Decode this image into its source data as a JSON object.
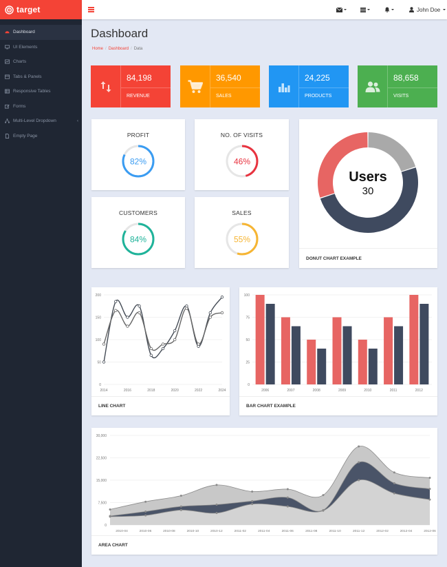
{
  "brand": {
    "name": "target"
  },
  "header": {
    "user_name": "John Doe"
  },
  "sidebar": {
    "items": [
      {
        "label": "Dashboard",
        "icon": "dashboard-icon",
        "active": true
      },
      {
        "label": "UI Elements",
        "icon": "desktop-icon"
      },
      {
        "label": "Charts",
        "icon": "chart-icon"
      },
      {
        "label": "Tabs & Panels",
        "icon": "tabs-icon"
      },
      {
        "label": "Responsive Tables",
        "icon": "table-icon"
      },
      {
        "label": "Forms",
        "icon": "edit-icon"
      },
      {
        "label": "Multi-Level Dropdown",
        "icon": "sitemap-icon",
        "has_children": true
      },
      {
        "label": "Empty Page",
        "icon": "file-icon"
      }
    ]
  },
  "page": {
    "title": "Dashboard",
    "breadcrumb": [
      "Home",
      "Dashboard",
      "Data"
    ]
  },
  "stats": [
    {
      "value": "84,198",
      "label": "REVENUE",
      "color": "#f44336",
      "icon": "sort-arrows-icon"
    },
    {
      "value": "36,540",
      "label": "SALES",
      "color": "#ff9800",
      "icon": "cart-icon"
    },
    {
      "value": "24,225",
      "label": "PRODUCTS",
      "color": "#2196f3",
      "icon": "bar-chart-icon"
    },
    {
      "value": "88,658",
      "label": "VISITS",
      "color": "#4caf50",
      "icon": "users-icon"
    }
  ],
  "gauges": [
    {
      "title": "PROFIT",
      "percent": 82,
      "label": "82%",
      "color": "#3a9cf2"
    },
    {
      "title": "NO. OF VISITS",
      "percent": 46,
      "label": "46%",
      "color": "#e8333f"
    },
    {
      "title": "CUSTOMERS",
      "percent": 84,
      "label": "84%",
      "color": "#1fb39a"
    },
    {
      "title": "SALES",
      "percent": 55,
      "label": "55%",
      "color": "#f6b533"
    }
  ],
  "chart_data": [
    {
      "type": "pie",
      "variant": "donut",
      "center_title": "Users",
      "center_value": "30",
      "footer": "DONUT CHART EXAMPLE",
      "values": [
        50,
        30,
        20
      ],
      "colors": [
        "#3f4a5f",
        "#e76563",
        "#a9a9a9"
      ]
    },
    {
      "type": "line",
      "footer": "LINE CHART",
      "x": [
        2014,
        2015,
        2016,
        2017,
        2018,
        2019,
        2020,
        2021,
        2022,
        2023,
        2024
      ],
      "x_ticks": [
        "2014",
        "2016",
        "2018",
        "2020",
        "2022",
        "2024"
      ],
      "y_ticks": [
        "0",
        "50",
        "100",
        "150",
        "200"
      ],
      "ylim": [
        0,
        200
      ],
      "series": [
        {
          "values": [
            50,
            185,
            150,
            175,
            65,
            80,
            120,
            175,
            85,
            160,
            195
          ],
          "color": "#444b55"
        },
        {
          "values": [
            90,
            165,
            130,
            160,
            80,
            90,
            100,
            170,
            90,
            150,
            160
          ],
          "color": "#666"
        }
      ]
    },
    {
      "type": "bar",
      "footer": "BAR CHART EXAMPLE",
      "categories": [
        "2006",
        "2007",
        "2008",
        "2009",
        "2010",
        "2011",
        "2012"
      ],
      "y_ticks": [
        "0",
        "25",
        "50",
        "75",
        "100"
      ],
      "ylim": [
        0,
        100
      ],
      "series": [
        {
          "values": [
            100,
            75,
            50,
            75,
            50,
            75,
            100
          ],
          "color": "#e76563"
        },
        {
          "values": [
            90,
            65,
            40,
            65,
            40,
            65,
            90
          ],
          "color": "#3f4a5f"
        }
      ]
    },
    {
      "type": "area",
      "footer": "AREA CHART",
      "x_ticks": [
        "2010-04",
        "2010-06",
        "2010-08",
        "2010-10",
        "2010-12",
        "2011-02",
        "2011-04",
        "2011-06",
        "2011-08",
        "2011-10",
        "2011-12",
        "2012-02",
        "2012-04",
        "2012-06"
      ],
      "y_ticks": [
        "0",
        "7,500",
        "15,000",
        "22,500",
        "30,000"
      ],
      "ylim": [
        0,
        30000
      ],
      "series": [
        {
          "values": [
            5200,
            7800,
            9800,
            13400,
            11200,
            12000,
            10000,
            26300,
            17600,
            15800
          ],
          "color": "#c8c8c8"
        },
        {
          "values": [
            3000,
            4500,
            6200,
            6800,
            8000,
            9200,
            5000,
            21000,
            14000,
            12100
          ],
          "color": "#4a5468"
        },
        {
          "values": [
            2800,
            3200,
            5000,
            4000,
            7000,
            6200,
            4800,
            15000,
            10600,
            8500
          ],
          "color": "#d3d3d3"
        }
      ]
    }
  ]
}
